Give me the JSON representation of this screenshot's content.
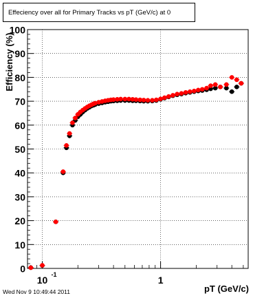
{
  "chart_data": {
    "type": "scatter",
    "title": "Effeciency over all for Primary Tracks vs pT (GeV/c) at 0",
    "xlabel": "pT (GeV/c)",
    "ylabel": "Efficiency (%)",
    "xscale": "log",
    "xlim": [
      0.075,
      5.5
    ],
    "ylim": [
      0,
      100
    ],
    "grid": true,
    "y_ticks": [
      0,
      10,
      20,
      30,
      40,
      50,
      60,
      70,
      80,
      90,
      100
    ],
    "x_major_ticks": [
      0.1,
      1
    ],
    "x_tick_labels": [
      {
        "value": 0.1,
        "base": "10",
        "exp": "-1"
      },
      {
        "value": 1,
        "base": "1",
        "exp": ""
      }
    ],
    "series": [
      {
        "color": "#000000",
        "points": [
          [
            0.08,
            0.3
          ],
          [
            0.1,
            1.2
          ],
          [
            0.13,
            19.5
          ],
          [
            0.15,
            40
          ],
          [
            0.16,
            50.5
          ],
          [
            0.17,
            55.5
          ],
          [
            0.18,
            60
          ],
          [
            0.19,
            62
          ],
          [
            0.2,
            63.5
          ],
          [
            0.21,
            64.5
          ],
          [
            0.22,
            65.5
          ],
          [
            0.23,
            66.3
          ],
          [
            0.24,
            67
          ],
          [
            0.25,
            67.5
          ],
          [
            0.26,
            68
          ],
          [
            0.27,
            68.3
          ],
          [
            0.28,
            68.6
          ],
          [
            0.3,
            69
          ],
          [
            0.32,
            69.3
          ],
          [
            0.34,
            69.6
          ],
          [
            0.36,
            69.8
          ],
          [
            0.38,
            70
          ],
          [
            0.4,
            70.1
          ],
          [
            0.43,
            70.2
          ],
          [
            0.46,
            70.3
          ],
          [
            0.5,
            70.3
          ],
          [
            0.54,
            70.3
          ],
          [
            0.58,
            70.2
          ],
          [
            0.62,
            70.2
          ],
          [
            0.67,
            70.1
          ],
          [
            0.72,
            70
          ],
          [
            0.78,
            70
          ],
          [
            0.85,
            70.1
          ],
          [
            0.92,
            70.3
          ],
          [
            1.0,
            70.8
          ],
          [
            1.08,
            71.3
          ],
          [
            1.17,
            71.8
          ],
          [
            1.27,
            72.3
          ],
          [
            1.38,
            72.7
          ],
          [
            1.5,
            73
          ],
          [
            1.63,
            73.4
          ],
          [
            1.77,
            73.7
          ],
          [
            1.92,
            74
          ],
          [
            2.08,
            74.3
          ],
          [
            2.25,
            74.5
          ],
          [
            2.45,
            74.8
          ],
          [
            2.65,
            75.2
          ],
          [
            2.9,
            75.5
          ],
          [
            3.2,
            76
          ],
          [
            3.6,
            75.5
          ],
          [
            4.0,
            74
          ],
          [
            4.4,
            76
          ],
          [
            4.8,
            77.5
          ]
        ]
      },
      {
        "color": "#ff0000",
        "points": [
          [
            0.08,
            0.3
          ],
          [
            0.1,
            1.3
          ],
          [
            0.13,
            19.5
          ],
          [
            0.15,
            40.5
          ],
          [
            0.16,
            51.5
          ],
          [
            0.17,
            56.5
          ],
          [
            0.18,
            61
          ],
          [
            0.19,
            63
          ],
          [
            0.2,
            64.5
          ],
          [
            0.21,
            65.5
          ],
          [
            0.22,
            66.3
          ],
          [
            0.23,
            67
          ],
          [
            0.24,
            67.6
          ],
          [
            0.25,
            68.1
          ],
          [
            0.26,
            68.5
          ],
          [
            0.27,
            68.9
          ],
          [
            0.28,
            69.2
          ],
          [
            0.3,
            69.6
          ],
          [
            0.32,
            69.9
          ],
          [
            0.34,
            70.2
          ],
          [
            0.36,
            70.4
          ],
          [
            0.38,
            70.6
          ],
          [
            0.4,
            70.7
          ],
          [
            0.43,
            70.8
          ],
          [
            0.46,
            70.9
          ],
          [
            0.5,
            70.9
          ],
          [
            0.54,
            70.9
          ],
          [
            0.58,
            70.8
          ],
          [
            0.62,
            70.7
          ],
          [
            0.67,
            70.6
          ],
          [
            0.72,
            70.5
          ],
          [
            0.78,
            70.4
          ],
          [
            0.85,
            70.4
          ],
          [
            0.92,
            70.6
          ],
          [
            1.0,
            71
          ],
          [
            1.08,
            71.5
          ],
          [
            1.17,
            72
          ],
          [
            1.27,
            72.5
          ],
          [
            1.38,
            73
          ],
          [
            1.5,
            73.3
          ],
          [
            1.63,
            73.7
          ],
          [
            1.77,
            74
          ],
          [
            1.92,
            74.3
          ],
          [
            2.08,
            74.7
          ],
          [
            2.25,
            75
          ],
          [
            2.45,
            75.5
          ],
          [
            2.65,
            76.5
          ],
          [
            2.9,
            77
          ],
          [
            3.2,
            76
          ],
          [
            3.6,
            77
          ],
          [
            4.0,
            80
          ],
          [
            4.4,
            79
          ],
          [
            4.8,
            77.5
          ]
        ]
      }
    ]
  },
  "footer": {
    "datestamp": "Wed Nov  9 10:49:44 2011"
  }
}
